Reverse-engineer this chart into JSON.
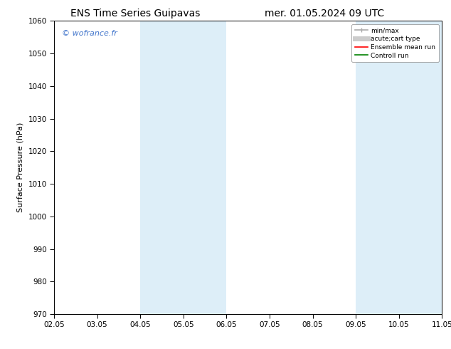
{
  "title_left": "ENS Time Series Guipavas",
  "title_right": "mer. 01.05.2024 09 UTC",
  "ylabel": "Surface Pressure (hPa)",
  "ylim": [
    970,
    1060
  ],
  "yticks": [
    970,
    980,
    990,
    1000,
    1010,
    1020,
    1030,
    1040,
    1050,
    1060
  ],
  "xtick_labels": [
    "02.05",
    "03.05",
    "04.05",
    "05.05",
    "06.05",
    "07.05",
    "08.05",
    "09.05",
    "10.05",
    "11.05"
  ],
  "x_values": [
    0,
    1,
    2,
    3,
    4,
    5,
    6,
    7,
    8,
    9
  ],
  "shaded_bands": [
    {
      "xmin": 2,
      "xmax": 4,
      "color": "#ddeef8"
    },
    {
      "xmin": 7,
      "xmax": 9,
      "color": "#ddeef8"
    }
  ],
  "watermark": "© wofrance.fr",
  "watermark_color": "#4477cc",
  "legend_entries": [
    {
      "label": "min/max",
      "color": "#aaaaaa",
      "lw": 1.2
    },
    {
      "label": "acute;cart type",
      "color": "#cccccc",
      "lw": 5
    },
    {
      "label": "Ensemble mean run",
      "color": "#ff0000",
      "lw": 1.2
    },
    {
      "label": "Controll run",
      "color": "#008000",
      "lw": 1.2
    }
  ],
  "background_color": "#ffffff",
  "title_fontsize": 10,
  "label_fontsize": 8,
  "tick_fontsize": 7.5
}
